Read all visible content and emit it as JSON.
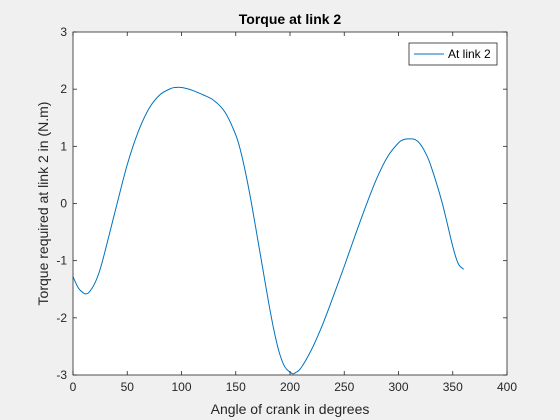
{
  "chart_data": {
    "type": "line",
    "title": "Torque at link 2",
    "xlabel": "Angle of crank in degrees",
    "ylabel": "Torque required at link 2 in (N.m)",
    "xlim": [
      0,
      400
    ],
    "ylim": [
      -3,
      3
    ],
    "xticks": [
      0,
      50,
      100,
      150,
      200,
      250,
      300,
      350,
      400
    ],
    "yticks": [
      -3,
      -2,
      -1,
      0,
      1,
      2,
      3
    ],
    "grid": false,
    "legend_position": "top-right",
    "series": [
      {
        "name": "At link 2",
        "color": "#0072BD",
        "x": [
          0,
          5,
          10,
          12,
          15,
          20,
          25,
          30,
          40,
          50,
          60,
          70,
          80,
          90,
          95,
          100,
          105,
          110,
          120,
          130,
          140,
          150,
          155,
          160,
          165,
          170,
          175,
          180,
          185,
          190,
          195,
          200,
          203,
          205,
          210,
          220,
          230,
          240,
          250,
          260,
          270,
          280,
          290,
          300,
          305,
          310,
          315,
          320,
          325,
          330,
          340,
          350,
          355,
          360
        ],
        "y": [
          -1.28,
          -1.48,
          -1.57,
          -1.58,
          -1.55,
          -1.4,
          -1.15,
          -0.8,
          -0.05,
          0.68,
          1.25,
          1.66,
          1.9,
          2.01,
          2.03,
          2.03,
          2.01,
          1.98,
          1.9,
          1.8,
          1.6,
          1.2,
          0.88,
          0.45,
          -0.05,
          -0.6,
          -1.15,
          -1.7,
          -2.2,
          -2.6,
          -2.85,
          -2.95,
          -2.98,
          -2.96,
          -2.88,
          -2.55,
          -2.12,
          -1.62,
          -1.1,
          -0.56,
          -0.04,
          0.44,
          0.82,
          1.06,
          1.12,
          1.13,
          1.12,
          1.04,
          0.88,
          0.65,
          0.03,
          -0.75,
          -1.05,
          -1.15
        ]
      }
    ]
  }
}
